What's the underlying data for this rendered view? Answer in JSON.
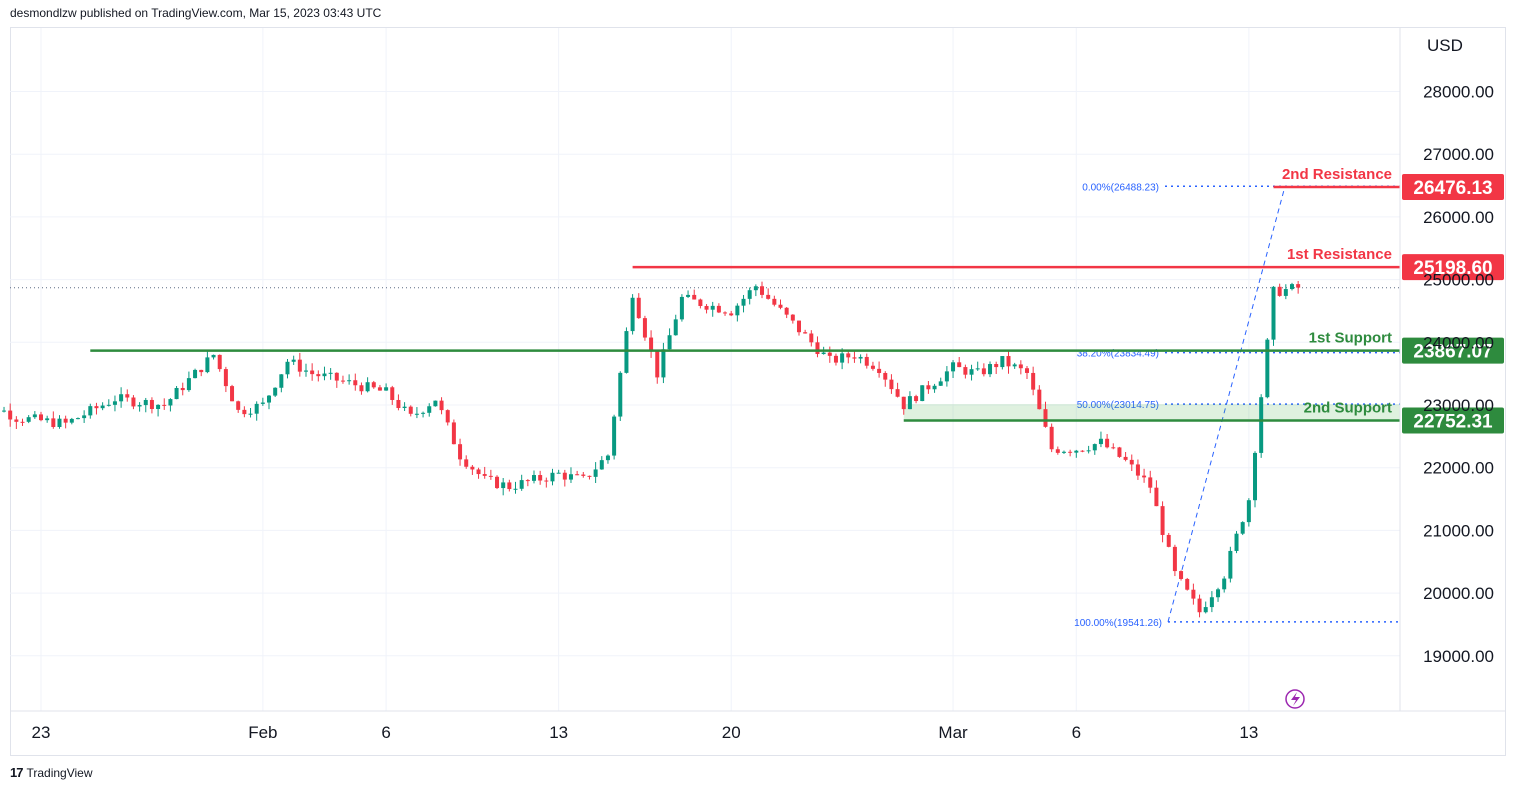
{
  "header": {
    "attribution": "desmondlzw published on TradingView.com, Mar 15, 2023 03:43 UTC"
  },
  "footer": {
    "logo_icon": "tradingview-logo-icon",
    "brand": "TradingView"
  },
  "colors": {
    "resistance": "#f23645",
    "support": "#2e8b3e",
    "up": "#089981",
    "down": "#f23645",
    "fib": "#2962ff",
    "grid": "#f0f3fa",
    "zone": "rgba(76,175,80,0.18)"
  },
  "chart_data": {
    "type": "candlestick",
    "currency": "USD",
    "y_ticks": [
      "28000.00",
      "27000.00",
      "26000.00",
      "25000.00",
      "24000.00",
      "23000.00",
      "22000.00",
      "21000.00",
      "20000.00",
      "19000.00"
    ],
    "ylim": [
      18200,
      28900
    ],
    "x_ticks": [
      "23",
      "Feb",
      "6",
      "13",
      "20",
      "Mar",
      "6",
      "13"
    ],
    "current_price": 24870,
    "levels": [
      {
        "name": "2nd Resistance",
        "value": 26476.13,
        "label": "26476.13",
        "kind": "resistance",
        "from": "Mar 14"
      },
      {
        "name": "1st Resistance",
        "value": 25198.6,
        "label": "25198.60",
        "kind": "resistance",
        "from": "Feb 16"
      },
      {
        "name": "1st Support",
        "value": 23867.07,
        "label": "23867.07",
        "kind": "support",
        "from": "Jan 25"
      },
      {
        "name": "2nd Support",
        "value": 22752.31,
        "label": "22752.31",
        "kind": "support",
        "from": "Feb 27"
      }
    ],
    "fib_levels": [
      {
        "label": "0.00%(26488.23)",
        "value": 26488.23
      },
      {
        "label": "38.20%(23834.49)",
        "value": 23834.49
      },
      {
        "label": "50.00%(23014.75)",
        "value": 23014.75
      },
      {
        "label": "100.00%(19541.26)",
        "value": 19541.26
      }
    ],
    "candle_anchors": [
      [
        "Jan 20",
        23200
      ],
      [
        "Jan 22",
        22800
      ],
      [
        "Jan 24",
        22700
      ],
      [
        "Jan 26",
        23100
      ],
      [
        "Jan 28",
        23000
      ],
      [
        "Jan 29",
        23400
      ],
      [
        "Jan 30",
        23800
      ],
      [
        "Jan 31",
        22900
      ],
      [
        "Feb 1",
        23000
      ],
      [
        "Feb 2",
        23700
      ],
      [
        "Feb 3",
        23500
      ],
      [
        "Feb 5",
        23300
      ],
      [
        "Feb 6",
        23200
      ],
      [
        "Feb 7",
        22800
      ],
      [
        "Feb 8",
        23100
      ],
      [
        "Feb 9",
        22200
      ],
      [
        "Feb 10",
        21800
      ],
      [
        "Feb 11",
        21700
      ],
      [
        "Feb 12",
        21800
      ],
      [
        "Feb 13",
        21900
      ],
      [
        "Feb 14",
        21800
      ],
      [
        "Feb 15",
        22200
      ],
      [
        "Feb 16",
        24800
      ],
      [
        "Feb 17",
        23500
      ],
      [
        "Feb 18",
        24700
      ],
      [
        "Feb 19",
        24600
      ],
      [
        "Feb 20",
        24500
      ],
      [
        "Feb 21",
        24900
      ],
      [
        "Feb 22",
        24500
      ],
      [
        "Feb 23",
        24100
      ],
      [
        "Feb 24",
        23700
      ],
      [
        "Feb 25",
        23800
      ],
      [
        "Feb 26",
        23600
      ],
      [
        "Feb 27",
        23000
      ],
      [
        "Feb 28",
        23300
      ],
      [
        "Mar 1",
        23600
      ],
      [
        "Mar 2",
        23500
      ],
      [
        "Mar 3",
        23700
      ],
      [
        "Mar 4",
        23500
      ],
      [
        "Mar 5",
        22300
      ],
      [
        "Mar 6",
        22300
      ],
      [
        "Mar 7",
        22400
      ],
      [
        "Mar 8",
        22100
      ],
      [
        "Mar 9",
        21700
      ],
      [
        "Mar 10",
        20300
      ],
      [
        "Mar 11",
        19700
      ],
      [
        "Mar 12",
        20300
      ],
      [
        "Mar 13",
        21500
      ],
      [
        "Mar 14",
        24800
      ],
      [
        "Mar 15",
        24870
      ]
    ]
  }
}
